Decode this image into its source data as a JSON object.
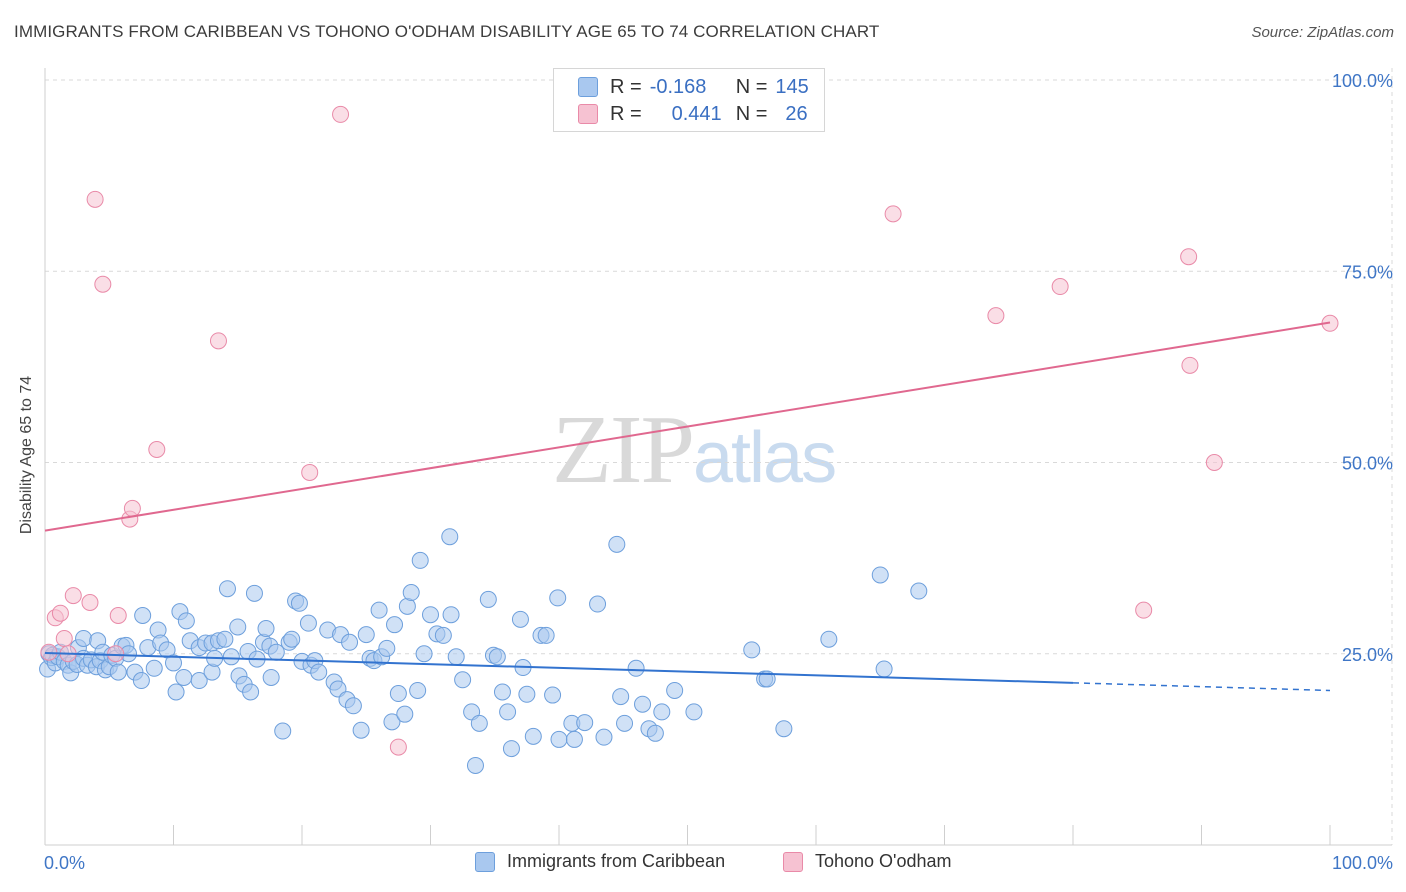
{
  "header": {
    "title": "IMMIGRANTS FROM CARIBBEAN VS TOHONO O'ODHAM DISABILITY AGE 65 TO 74 CORRELATION CHART",
    "source": "Source: ZipAtlas.com"
  },
  "watermark": {
    "zip": "ZIP",
    "atlas": "atlas"
  },
  "legend": {
    "rows": [
      {
        "r_label": "R =",
        "r_value": "-0.168",
        "n_label": "N =",
        "n_value": "145"
      },
      {
        "r_label": "R =",
        "r_value": "0.441",
        "n_label": "N =",
        "n_value": "26"
      }
    ]
  },
  "bottom_legend": {
    "blue": "Immigrants from Caribbean",
    "pink": "Tohono O'odham"
  },
  "colors": {
    "blue_fill": "#a9c8ef",
    "blue_stroke": "#6d9fdc",
    "blue_line": "#3273cf",
    "pink_fill": "#f6c2d2",
    "pink_stroke": "#e98aa8",
    "pink_line": "#e0688f",
    "axis_text": "#3f76c6",
    "grid": "#d9d9d9"
  },
  "chart_data": {
    "type": "scatter",
    "title": "IMMIGRANTS FROM CARIBBEAN VS TOHONO O'ODHAM DISABILITY AGE 65 TO 74 CORRELATION CHART",
    "xlabel": "",
    "ylabel": "Disability Age 65 to 74",
    "xlim": [
      0,
      100
    ],
    "ylim": [
      0,
      100
    ],
    "x_tick_labels": [
      "0.0%",
      "100.0%"
    ],
    "y_tick_labels": [
      "25.0%",
      "50.0%",
      "75.0%",
      "100.0%"
    ],
    "y_ticks": [
      25,
      50,
      75,
      100
    ],
    "series": [
      {
        "name": "Immigrants from Caribbean",
        "color": "#6d9fdc",
        "points": [
          [
            0.2,
            23
          ],
          [
            0.3,
            25
          ],
          [
            0.5,
            24.5
          ],
          [
            0.6,
            24.8
          ],
          [
            0.8,
            23.8
          ],
          [
            1,
            24.6
          ],
          [
            1.2,
            25.2
          ],
          [
            1.5,
            24
          ],
          [
            1.8,
            23.5
          ],
          [
            2,
            22.5
          ],
          [
            2.2,
            24
          ],
          [
            2.5,
            23.6
          ],
          [
            2.6,
            25.8
          ],
          [
            3,
            24.4
          ],
          [
            3,
            27
          ],
          [
            3.3,
            23.5
          ],
          [
            3.6,
            24.2
          ],
          [
            4,
            23.3
          ],
          [
            4.1,
            26.7
          ],
          [
            4.3,
            24.1
          ],
          [
            4.5,
            25.2
          ],
          [
            4.7,
            22.9
          ],
          [
            5,
            23.3
          ],
          [
            5.2,
            24.8
          ],
          [
            5.5,
            24.4
          ],
          [
            5.7,
            22.6
          ],
          [
            6,
            26
          ],
          [
            6.3,
            26.1
          ],
          [
            6.5,
            25
          ],
          [
            7,
            22.6
          ],
          [
            7.5,
            21.5
          ],
          [
            7.6,
            30
          ],
          [
            8,
            25.8
          ],
          [
            8.5,
            23.1
          ],
          [
            8.8,
            28.1
          ],
          [
            9,
            26.4
          ],
          [
            9.5,
            25.5
          ],
          [
            10,
            23.8
          ],
          [
            10.2,
            20
          ],
          [
            10.5,
            30.5
          ],
          [
            10.8,
            21.9
          ],
          [
            11,
            29.3
          ],
          [
            11.3,
            26.7
          ],
          [
            12,
            21.5
          ],
          [
            12,
            25.8
          ],
          [
            12.5,
            26.4
          ],
          [
            13,
            22.6
          ],
          [
            13,
            26.4
          ],
          [
            13.2,
            24.4
          ],
          [
            13.5,
            26.7
          ],
          [
            14,
            26.9
          ],
          [
            14.2,
            33.5
          ],
          [
            14.5,
            24.6
          ],
          [
            15,
            28.5
          ],
          [
            15.1,
            22.1
          ],
          [
            15.5,
            21
          ],
          [
            15.8,
            25.3
          ],
          [
            16,
            20
          ],
          [
            16.3,
            32.9
          ],
          [
            16.5,
            24.3
          ],
          [
            17,
            26.5
          ],
          [
            17.2,
            28.3
          ],
          [
            17.5,
            26
          ],
          [
            17.6,
            21.9
          ],
          [
            18,
            25.2
          ],
          [
            18.5,
            14.9
          ],
          [
            19,
            26.5
          ],
          [
            19.2,
            26.9
          ],
          [
            19.5,
            31.9
          ],
          [
            19.8,
            31.6
          ],
          [
            20,
            24
          ],
          [
            20.5,
            29
          ],
          [
            20.7,
            23.5
          ],
          [
            21,
            24.1
          ],
          [
            21.3,
            22.6
          ],
          [
            22,
            28.1
          ],
          [
            22.5,
            21.3
          ],
          [
            22.8,
            20.4
          ],
          [
            23,
            27.5
          ],
          [
            23.5,
            19
          ],
          [
            23.7,
            26.5
          ],
          [
            24,
            18.2
          ],
          [
            24.6,
            15
          ],
          [
            25,
            27.5
          ],
          [
            25.3,
            24.4
          ],
          [
            25.6,
            24.1
          ],
          [
            26,
            30.7
          ],
          [
            26.2,
            24.6
          ],
          [
            26.6,
            25.7
          ],
          [
            27,
            16.1
          ],
          [
            27.2,
            28.8
          ],
          [
            27.5,
            19.8
          ],
          [
            28,
            17.1
          ],
          [
            28.2,
            31.2
          ],
          [
            28.5,
            33
          ],
          [
            29,
            20.2
          ],
          [
            29.2,
            37.2
          ],
          [
            29.5,
            25
          ],
          [
            30,
            30.1
          ],
          [
            30.5,
            27.6
          ],
          [
            31,
            27.4
          ],
          [
            31.5,
            40.3
          ],
          [
            31.6,
            30.1
          ],
          [
            32,
            24.6
          ],
          [
            32.5,
            21.6
          ],
          [
            33.2,
            17.4
          ],
          [
            33.5,
            10.4
          ],
          [
            33.8,
            15.9
          ],
          [
            34.5,
            32.1
          ],
          [
            34.9,
            24.8
          ],
          [
            35.2,
            24.6
          ],
          [
            35.6,
            20
          ],
          [
            36,
            17.4
          ],
          [
            36.3,
            12.6
          ],
          [
            37,
            29.5
          ],
          [
            37.2,
            23.2
          ],
          [
            37.5,
            19.7
          ],
          [
            38,
            14.2
          ],
          [
            38.6,
            27.4
          ],
          [
            39,
            27.4
          ],
          [
            39.5,
            19.6
          ],
          [
            39.9,
            32.3
          ],
          [
            40,
            13.8
          ],
          [
            41,
            15.9
          ],
          [
            41.2,
            13.8
          ],
          [
            42,
            16
          ],
          [
            43,
            31.5
          ],
          [
            43.5,
            14.1
          ],
          [
            44.5,
            39.3
          ],
          [
            44.8,
            19.4
          ],
          [
            45.1,
            15.9
          ],
          [
            46,
            23.1
          ],
          [
            46.5,
            18.4
          ],
          [
            47,
            15.2
          ],
          [
            47.5,
            14.6
          ],
          [
            48,
            17.4
          ],
          [
            49,
            20.2
          ],
          [
            50.5,
            17.4
          ],
          [
            55,
            25.5
          ],
          [
            56,
            21.7
          ],
          [
            56.2,
            21.7
          ],
          [
            57.5,
            15.2
          ],
          [
            61,
            26.9
          ],
          [
            65,
            35.3
          ],
          [
            65.3,
            23
          ],
          [
            68,
            33.2
          ]
        ]
      },
      {
        "name": "Tohono O'odham",
        "color": "#e98aa8",
        "points": [
          [
            0.3,
            25.2
          ],
          [
            0.8,
            29.7
          ],
          [
            1.2,
            30.3
          ],
          [
            1.5,
            27
          ],
          [
            1.8,
            25
          ],
          [
            2.2,
            32.6
          ],
          [
            3.5,
            31.7
          ],
          [
            3.9,
            84.4
          ],
          [
            4.5,
            73.3
          ],
          [
            5.5,
            25
          ],
          [
            5.7,
            30
          ],
          [
            6.6,
            42.6
          ],
          [
            6.8,
            44
          ],
          [
            8.7,
            51.7
          ],
          [
            13.5,
            65.9
          ],
          [
            20.6,
            48.7
          ],
          [
            23,
            95.5
          ],
          [
            27.5,
            12.8
          ],
          [
            66,
            82.5
          ],
          [
            74,
            69.2
          ],
          [
            79,
            73
          ],
          [
            85.5,
            30.7
          ],
          [
            89,
            76.9
          ],
          [
            89.1,
            62.7
          ],
          [
            91,
            50
          ],
          [
            100,
            68.2
          ]
        ]
      }
    ],
    "trend_lines": [
      {
        "series": "Immigrants from Caribbean",
        "x": [
          0,
          80
        ],
        "y": [
          25.1,
          21.2
        ],
        "dashed_extension": {
          "x": [
            80,
            100
          ],
          "y": [
            21.2,
            20.2
          ]
        }
      },
      {
        "series": "Tohono O'odham",
        "x": [
          0,
          100
        ],
        "y": [
          41.1,
          68.3
        ]
      }
    ],
    "grid": true,
    "legend_position": "top-center"
  }
}
